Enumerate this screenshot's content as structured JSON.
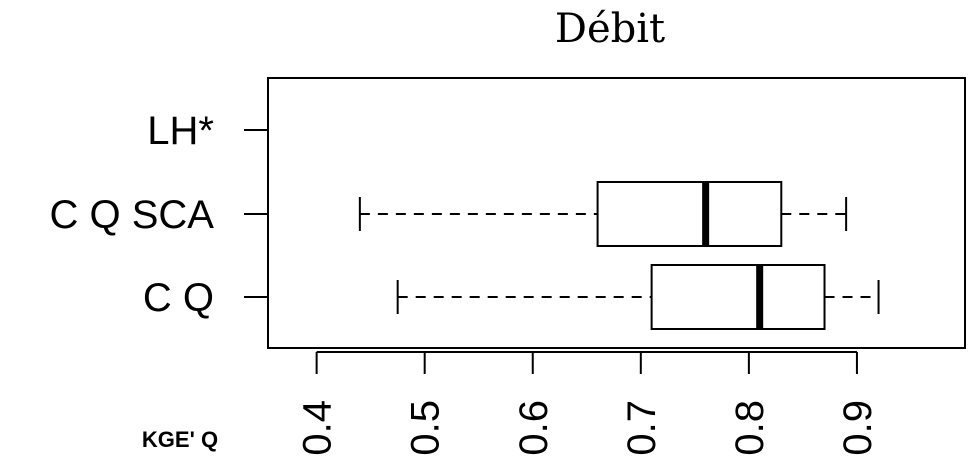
{
  "chart_data": {
    "type": "boxplot",
    "title": "Débit",
    "xlabel": "KGE' Q",
    "orientation": "horizontal",
    "xlim": [
      0.355,
      1.0
    ],
    "ticks": [
      0.4,
      0.5,
      0.6,
      0.7,
      0.8,
      0.9
    ],
    "tick_labels": [
      "0.4",
      "0.5",
      "0.6",
      "0.7",
      "0.8",
      "0.9"
    ],
    "categories": [
      "LH*",
      "C Q SCA",
      "C Q"
    ],
    "boxes": [
      {
        "label": "LH*",
        "min": null,
        "q1": null,
        "median": null,
        "q3": null,
        "max": null
      },
      {
        "label": "C Q SCA",
        "min": 0.44,
        "q1": 0.66,
        "median": 0.76,
        "q3": 0.83,
        "max": 0.89
      },
      {
        "label": "C Q",
        "min": 0.475,
        "q1": 0.71,
        "median": 0.81,
        "q3": 0.87,
        "max": 0.92
      }
    ],
    "grid": false,
    "legend": "none"
  }
}
